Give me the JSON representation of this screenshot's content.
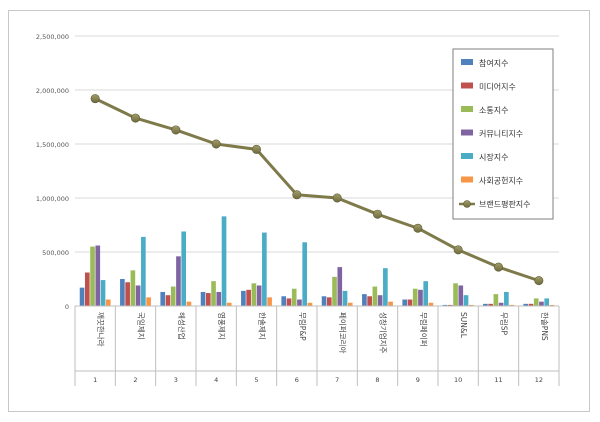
{
  "chart_data": {
    "type": "bar",
    "title": "",
    "xlabel": "",
    "ylabel": "",
    "ylim": [
      0,
      2500000
    ],
    "yticks": [
      0,
      500000,
      1000000,
      1500000,
      2000000,
      2500000
    ],
    "ytick_labels": [
      "0",
      "500,000",
      "1,000,000",
      "1,500,000",
      "2,000,000",
      "2,500,000"
    ],
    "grid": true,
    "legend_position": "top-right",
    "categories": [
      "깨끗한나라",
      "국일제지",
      "해성산업",
      "영풍제지",
      "한솔제지",
      "무림P&P",
      "페이퍼코리아",
      "성창기업지주",
      "무림페이퍼",
      "SUN&L",
      "무림SP",
      "한솔PNS"
    ],
    "category_numbers": [
      "1",
      "2",
      "3",
      "4",
      "5",
      "6",
      "7",
      "8",
      "9",
      "10",
      "11",
      "12"
    ],
    "series": [
      {
        "name": "참여지수",
        "color": "#4f81bd",
        "values": [
          170000,
          250000,
          130000,
          130000,
          140000,
          90000,
          90000,
          110000,
          60000,
          10000,
          20000,
          20000
        ]
      },
      {
        "name": "미디어지수",
        "color": "#c0504d",
        "values": [
          310000,
          220000,
          100000,
          120000,
          150000,
          70000,
          80000,
          90000,
          60000,
          10000,
          20000,
          20000
        ]
      },
      {
        "name": "소통지수",
        "color": "#9bbb59",
        "values": [
          550000,
          330000,
          180000,
          230000,
          210000,
          160000,
          270000,
          180000,
          160000,
          210000,
          110000,
          70000
        ]
      },
      {
        "name": "커뮤니티지수",
        "color": "#8064a2",
        "values": [
          560000,
          190000,
          460000,
          130000,
          190000,
          60000,
          360000,
          100000,
          150000,
          190000,
          30000,
          40000
        ]
      },
      {
        "name": "시장지수",
        "color": "#4bacc6",
        "values": [
          240000,
          640000,
          690000,
          830000,
          680000,
          590000,
          140000,
          350000,
          230000,
          100000,
          130000,
          70000
        ]
      },
      {
        "name": "사회공헌지수",
        "color": "#f79646",
        "values": [
          60000,
          80000,
          40000,
          30000,
          80000,
          30000,
          30000,
          40000,
          30000,
          10000,
          10000,
          10000
        ]
      }
    ],
    "line_series": {
      "name": "브랜드평판지수",
      "color": "#7f7a4a",
      "values": [
        1920000,
        1740000,
        1630000,
        1500000,
        1450000,
        1030000,
        1000000,
        850000,
        720000,
        520000,
        360000,
        235000
      ]
    }
  }
}
